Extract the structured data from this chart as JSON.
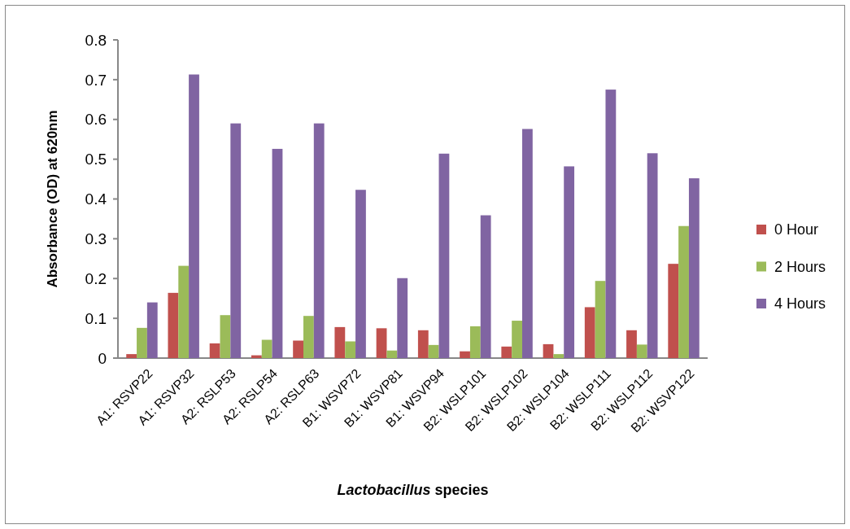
{
  "chart_data": {
    "type": "bar",
    "xlabel": "Lactobacillus species",
    "ylabel": "Absorbance (OD) at 620nm",
    "categories": [
      "A1: RSVP22",
      "A1: RSVP32",
      "A2: RSLP53",
      "A2: RSLP54",
      "A2: RSLP63",
      "B1: WSVP72",
      "B1: WSVP81",
      "B1: WSVP94",
      "B2: WSLP101",
      "B2: WSLP102",
      "B2: WSLP104",
      "B2: WSLP111",
      "B2: WSLP112",
      "B2: WSVP122"
    ],
    "series": [
      {
        "name": "0 Hour",
        "color": "#c0504d",
        "values": [
          0.01,
          0.164,
          0.037,
          0.007,
          0.044,
          0.078,
          0.075,
          0.07,
          0.017,
          0.029,
          0.035,
          0.128,
          0.07,
          0.237
        ]
      },
      {
        "name": "2 Hours",
        "color": "#9bbb59",
        "values": [
          0.076,
          0.232,
          0.108,
          0.046,
          0.106,
          0.042,
          0.019,
          0.033,
          0.08,
          0.094,
          0.01,
          0.194,
          0.034,
          0.332
        ]
      },
      {
        "name": "4 Hours",
        "color": "#8064a2",
        "values": [
          0.14,
          0.713,
          0.59,
          0.526,
          0.59,
          0.423,
          0.201,
          0.514,
          0.359,
          0.576,
          0.482,
          0.675,
          0.515,
          0.452
        ]
      }
    ],
    "ylim": [
      0,
      0.8
    ],
    "yticks": [
      0,
      0.1,
      0.2,
      0.3,
      0.4,
      0.5,
      0.6,
      0.7,
      0.8
    ],
    "grid": false,
    "legend": "right"
  }
}
